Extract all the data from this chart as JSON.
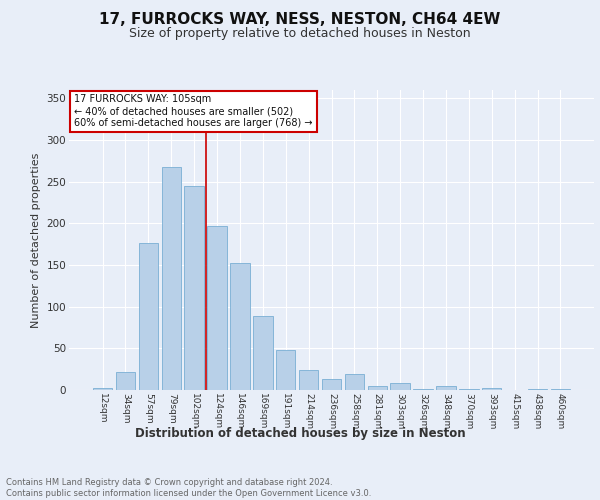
{
  "title1": "17, FURROCKS WAY, NESS, NESTON, CH64 4EW",
  "title2": "Size of property relative to detached houses in Neston",
  "xlabel": "Distribution of detached houses by size in Neston",
  "ylabel": "Number of detached properties",
  "categories": [
    "12sqm",
    "34sqm",
    "57sqm",
    "79sqm",
    "102sqm",
    "124sqm",
    "146sqm",
    "169sqm",
    "191sqm",
    "214sqm",
    "236sqm",
    "258sqm",
    "281sqm",
    "303sqm",
    "326sqm",
    "348sqm",
    "370sqm",
    "393sqm",
    "415sqm",
    "438sqm",
    "460sqm"
  ],
  "values": [
    2,
    22,
    177,
    268,
    245,
    197,
    152,
    89,
    48,
    24,
    13,
    19,
    5,
    8,
    1,
    5,
    1,
    3,
    0,
    1,
    1
  ],
  "bar_color": "#b8d0e8",
  "bar_edge_color": "#7aafd4",
  "vline_x": 4.5,
  "vline_color": "#cc0000",
  "annotation_text": "17 FURROCKS WAY: 105sqm\n← 40% of detached houses are smaller (502)\n60% of semi-detached houses are larger (768) →",
  "annotation_box_color": "#ffffff",
  "annotation_box_edge": "#cc0000",
  "ylim": [
    0,
    360
  ],
  "yticks": [
    0,
    50,
    100,
    150,
    200,
    250,
    300,
    350
  ],
  "footer_text": "Contains HM Land Registry data © Crown copyright and database right 2024.\nContains public sector information licensed under the Open Government Licence v3.0.",
  "bg_color": "#e8eef8",
  "plot_bg_color": "#e8eef8",
  "grid_color": "#ffffff",
  "title1_fontsize": 11,
  "title2_fontsize": 9,
  "xlabel_fontsize": 8.5,
  "ylabel_fontsize": 8
}
